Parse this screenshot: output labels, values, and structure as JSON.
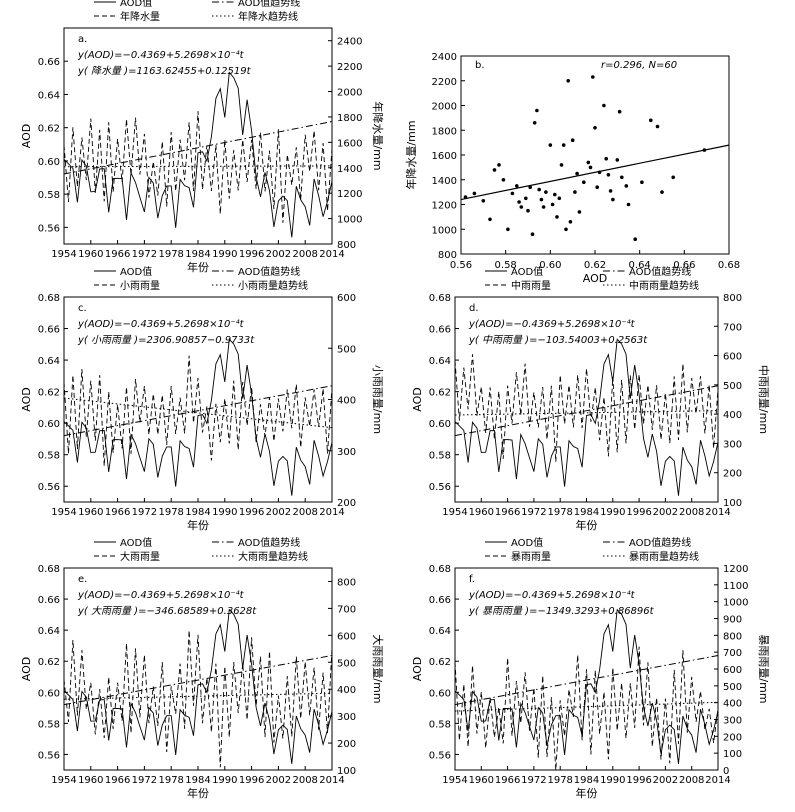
{
  "figure": {
    "panel_count": 6
  },
  "chart_data": [
    {
      "id": "a",
      "type": "line",
      "panel_label": "a.",
      "xlabel": "年份",
      "ylabel_left": "AOD",
      "ylabel_right": "年降水量/mm",
      "xlim": [
        1954,
        2014
      ],
      "ylim_left": [
        0.55,
        0.68
      ],
      "ylim_right": [
        800,
        2500
      ],
      "xticks": [
        "1954",
        "1960",
        "1966",
        "1972",
        "1978",
        "1984",
        "1990",
        "1996",
        "2002",
        "2008",
        "2014"
      ],
      "yticks_left": [
        "0.56",
        "0.58",
        "0.60",
        "0.62",
        "0.64",
        "0.66"
      ],
      "yticks_right": [
        "800",
        "1000",
        "1200",
        "1400",
        "1600",
        "1800",
        "2000",
        "2200",
        "2400"
      ],
      "legend": [
        "AOD值",
        "AOD值趋势线",
        "年降水量",
        "年降水趋势线"
      ],
      "annotations": [
        "y(AOD)=−0.4369+5.2698×10⁻⁴t",
        "y( 降水量 )=1163.62455+0.12519t"
      ],
      "series": [
        {
          "name": "AOD值",
          "axis": "left",
          "style": "solid",
          "seed": 11,
          "base": 0.594,
          "amp": 0.012
        },
        {
          "name": "AOD值趋势线",
          "axis": "left",
          "style": "dashdot",
          "trend": [
            0.5921,
            0.6237
          ]
        },
        {
          "name": "年降水量",
          "axis": "right",
          "style": "dashed",
          "seed": 23,
          "base": 1420,
          "amp": 260
        },
        {
          "name": "年降水趋势线",
          "axis": "right",
          "style": "dotted",
          "trend": [
            1408,
            1415
          ]
        }
      ]
    },
    {
      "id": "b",
      "type": "scatter",
      "panel_label": "b.",
      "xlabel": "AOD",
      "ylabel": "年降水量/mm",
      "xlim": [
        0.56,
        0.68
      ],
      "ylim": [
        800,
        2400
      ],
      "xticks": [
        "0.56",
        "0.58",
        "0.60",
        "0.62",
        "0.64",
        "0.66",
        "0.68"
      ],
      "yticks": [
        "800",
        "1000",
        "1200",
        "1400",
        "1600",
        "1800",
        "2000",
        "2200",
        "2400"
      ],
      "annotation": "r=0.296, N=60",
      "fit_line": [
        [
          0.56,
          1240
        ],
        [
          0.68,
          1680
        ]
      ],
      "points": [
        [
          0.562,
          1260
        ],
        [
          0.566,
          1290
        ],
        [
          0.57,
          1230
        ],
        [
          0.573,
          1080
        ],
        [
          0.575,
          1480
        ],
        [
          0.577,
          1520
        ],
        [
          0.579,
          1400
        ],
        [
          0.581,
          1000
        ],
        [
          0.583,
          1290
        ],
        [
          0.585,
          1350
        ],
        [
          0.586,
          1220
        ],
        [
          0.587,
          1180
        ],
        [
          0.589,
          1250
        ],
        [
          0.59,
          1150
        ],
        [
          0.591,
          1340
        ],
        [
          0.592,
          960
        ],
        [
          0.593,
          1860
        ],
        [
          0.594,
          1960
        ],
        [
          0.595,
          1320
        ],
        [
          0.596,
          1240
        ],
        [
          0.597,
          1180
        ],
        [
          0.598,
          1300
        ],
        [
          0.6,
          1680
        ],
        [
          0.601,
          1200
        ],
        [
          0.602,
          1280
        ],
        [
          0.603,
          1100
        ],
        [
          0.604,
          1250
        ],
        [
          0.605,
          1520
        ],
        [
          0.606,
          1680
        ],
        [
          0.607,
          1000
        ],
        [
          0.608,
          2200
        ],
        [
          0.609,
          1060
        ],
        [
          0.61,
          1720
        ],
        [
          0.611,
          1300
        ],
        [
          0.612,
          1450
        ],
        [
          0.613,
          1140
        ],
        [
          0.615,
          1380
        ],
        [
          0.617,
          1540
        ],
        [
          0.618,
          1500
        ],
        [
          0.619,
          2230
        ],
        [
          0.62,
          1820
        ],
        [
          0.621,
          1340
        ],
        [
          0.622,
          1460
        ],
        [
          0.624,
          2000
        ],
        [
          0.625,
          1570
        ],
        [
          0.626,
          1440
        ],
        [
          0.627,
          1310
        ],
        [
          0.628,
          1240
        ],
        [
          0.63,
          1560
        ],
        [
          0.631,
          1950
        ],
        [
          0.632,
          1420
        ],
        [
          0.634,
          1350
        ],
        [
          0.635,
          1200
        ],
        [
          0.638,
          920
        ],
        [
          0.641,
          1380
        ],
        [
          0.645,
          1880
        ],
        [
          0.648,
          1830
        ],
        [
          0.65,
          1300
        ],
        [
          0.655,
          1420
        ],
        [
          0.669,
          1640
        ]
      ]
    },
    {
      "id": "c",
      "type": "line",
      "panel_label": "c.",
      "xlabel": "年份",
      "ylabel_left": "AOD",
      "ylabel_right": "小雨雨量/mm",
      "xlim": [
        1954,
        2014
      ],
      "ylim_left": [
        0.55,
        0.68
      ],
      "ylim_right": [
        200,
        600
      ],
      "xticks": [
        "1954",
        "1960",
        "1966",
        "1972",
        "1978",
        "1984",
        "1990",
        "1996",
        "2002",
        "2008",
        "2014"
      ],
      "yticks_left": [
        "0.56",
        "0.58",
        "0.60",
        "0.62",
        "0.64",
        "0.66",
        "0.68"
      ],
      "yticks_right": [
        "200",
        "300",
        "400",
        "500",
        "600"
      ],
      "legend": [
        "AOD值",
        "AOD值趋势线",
        "小雨雨量",
        "小雨雨量趋势线"
      ],
      "annotations": [
        "y(AOD)=−0.4369+5.2698×10⁻⁴t",
        "y( 小雨雨量 )=2306.90857−0.9733t"
      ],
      "series": [
        {
          "name": "AOD值",
          "axis": "left",
          "style": "solid",
          "seed": 11,
          "base": 0.594,
          "amp": 0.012
        },
        {
          "name": "AOD值趋势线",
          "axis": "left",
          "style": "dashdot",
          "trend": [
            0.5921,
            0.6237
          ]
        },
        {
          "name": "小雨雨量",
          "axis": "right",
          "style": "dashed",
          "seed": 37,
          "base": 370,
          "amp": 60
        },
        {
          "name": "小雨雨量趋势线",
          "axis": "right",
          "style": "dotted",
          "trend": [
            403,
            345
          ]
        }
      ]
    },
    {
      "id": "d",
      "type": "line",
      "panel_label": "d.",
      "xlabel": "年份",
      "ylabel_left": "AOD",
      "ylabel_right": "中雨雨量/mm",
      "xlim": [
        1954,
        2014
      ],
      "ylim_left": [
        0.55,
        0.68
      ],
      "ylim_right": [
        100,
        800
      ],
      "xticks": [
        "1954",
        "1960",
        "1966",
        "1972",
        "1978",
        "1984",
        "1990",
        "1996",
        "2002",
        "2008",
        "2014"
      ],
      "yticks_left": [
        "0.56",
        "0.58",
        "0.60",
        "0.62",
        "0.64",
        "0.66",
        "0.68"
      ],
      "yticks_right": [
        "100",
        "200",
        "300",
        "400",
        "500",
        "600",
        "700",
        "800"
      ],
      "legend": [
        "AOD值",
        "AOD值趋势线",
        "中雨雨量",
        "中雨雨量趋势线"
      ],
      "annotations": [
        "y(AOD)=−0.4369+5.2698×10⁻⁴t",
        "y( 中雨雨量 )=−103.54003+0.2563t"
      ],
      "series": [
        {
          "name": "AOD值",
          "axis": "left",
          "style": "solid",
          "seed": 11,
          "base": 0.594,
          "amp": 0.012
        },
        {
          "name": "AOD值趋势线",
          "axis": "left",
          "style": "dashdot",
          "trend": [
            0.5921,
            0.6237
          ]
        },
        {
          "name": "中雨雨量",
          "axis": "right",
          "style": "dashed",
          "seed": 41,
          "base": 420,
          "amp": 110
        },
        {
          "name": "中雨雨量趋势线",
          "axis": "right",
          "style": "dotted",
          "trend": [
            397,
            412
          ]
        }
      ]
    },
    {
      "id": "e",
      "type": "line",
      "panel_label": "e.",
      "xlabel": "年份",
      "ylabel_left": "AOD",
      "ylabel_right": "大雨雨量/mm",
      "xlim": [
        1954,
        2014
      ],
      "ylim_left": [
        0.55,
        0.68
      ],
      "ylim_right": [
        100,
        850
      ],
      "xticks": [
        "1954",
        "1960",
        "1966",
        "1972",
        "1978",
        "1984",
        "1990",
        "1996",
        "2002",
        "2008",
        "2014"
      ],
      "yticks_left": [
        "0.56",
        "0.58",
        "0.60",
        "0.62",
        "0.64",
        "0.66",
        "0.68"
      ],
      "yticks_right": [
        "100",
        "200",
        "300",
        "400",
        "500",
        "600",
        "700",
        "800"
      ],
      "legend": [
        "AOD值",
        "AOD值趋势线",
        "大雨雨量",
        "大雨雨量趋势线"
      ],
      "annotations": [
        "y(AOD)=−0.4369+5.2698×10⁻⁴t",
        "y( 大雨雨量 )=−346.68589+0.3628t"
      ],
      "series": [
        {
          "name": "AOD值",
          "axis": "left",
          "style": "solid",
          "seed": 11,
          "base": 0.594,
          "amp": 0.012
        },
        {
          "name": "AOD值趋势线",
          "axis": "left",
          "style": "dashdot",
          "trend": [
            0.5921,
            0.6237
          ]
        },
        {
          "name": "大雨雨量",
          "axis": "right",
          "style": "dashed",
          "seed": 53,
          "base": 370,
          "amp": 150
        },
        {
          "name": "大雨雨量趋势线",
          "axis": "right",
          "style": "dotted",
          "trend": [
            363,
            385
          ]
        }
      ]
    },
    {
      "id": "f",
      "type": "line",
      "panel_label": "f.",
      "xlabel": "年份",
      "ylabel_left": "AOD",
      "ylabel_right": "暴雨雨量/mm",
      "xlim": [
        1954,
        2014
      ],
      "ylim_left": [
        0.55,
        0.68
      ],
      "ylim_right": [
        0,
        1200
      ],
      "xticks": [
        "1954",
        "1960",
        "1966",
        "1972",
        "1978",
        "1984",
        "1990",
        "1996",
        "2002",
        "2008",
        "2014"
      ],
      "yticks_left": [
        "0.56",
        "0.58",
        "0.60",
        "0.62",
        "0.64",
        "0.66",
        "0.68"
      ],
      "yticks_right": [
        "0",
        "100",
        "200",
        "300",
        "400",
        "500",
        "600",
        "700",
        "800",
        "900",
        "1000",
        "1100",
        "1200"
      ],
      "legend": [
        "AOD值",
        "AOD值趋势线",
        "暴雨雨量",
        "暴雨雨量趋势线"
      ],
      "annotations": [
        "y(AOD)=−0.4369+5.2698×10⁻⁴t",
        "y( 暴雨雨量 )=−1349.3293+0.86896t"
      ],
      "series": [
        {
          "name": "AOD值",
          "axis": "left",
          "style": "solid",
          "seed": 11,
          "base": 0.594,
          "amp": 0.012
        },
        {
          "name": "AOD值趋势线",
          "axis": "left",
          "style": "dashdot",
          "trend": [
            0.5921,
            0.6237
          ]
        },
        {
          "name": "暴雨雨量",
          "axis": "right",
          "style": "dashed",
          "seed": 67,
          "base": 340,
          "amp": 230
        },
        {
          "name": "暴雨雨量趋势线",
          "axis": "right",
          "style": "dotted",
          "trend": [
            350,
            402
          ]
        }
      ]
    }
  ]
}
